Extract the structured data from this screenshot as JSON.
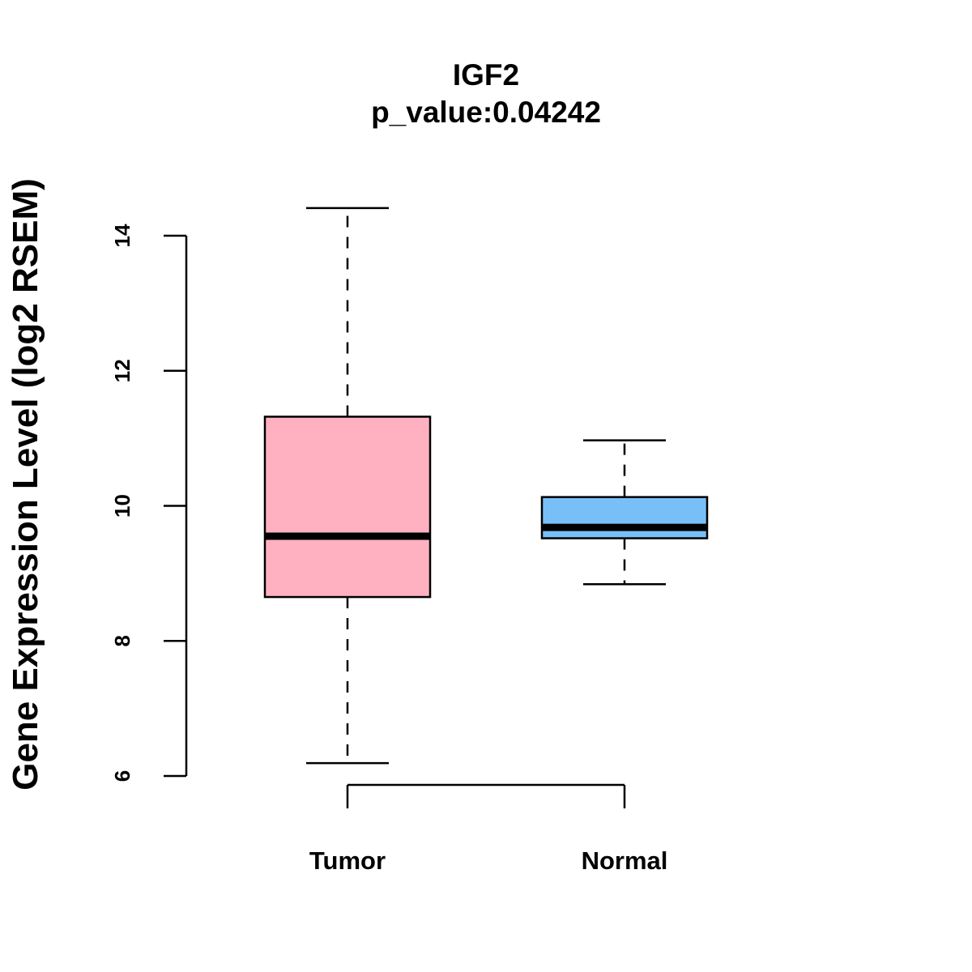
{
  "chart_data": {
    "type": "boxplot",
    "title": "IGF2",
    "subtitle": "p_value:0.04242",
    "xlabel": "",
    "ylabel": "Gene Expression Level (log2 RSEM)",
    "ylim": [
      6,
      14
    ],
    "yticks": [
      6,
      8,
      10,
      12,
      14
    ],
    "categories": [
      "Tumor",
      "Normal"
    ],
    "series": [
      {
        "name": "Tumor",
        "whisker_low": 6.19,
        "q1": 8.65,
        "median": 9.55,
        "q3": 11.32,
        "whisker_high": 14.41,
        "color": "#FFB1C2"
      },
      {
        "name": "Normal",
        "whisker_low": 8.84,
        "q1": 9.52,
        "median": 9.68,
        "q3": 10.13,
        "whisker_high": 10.97,
        "color": "#78BFF8"
      }
    ],
    "group_bracket": true
  }
}
